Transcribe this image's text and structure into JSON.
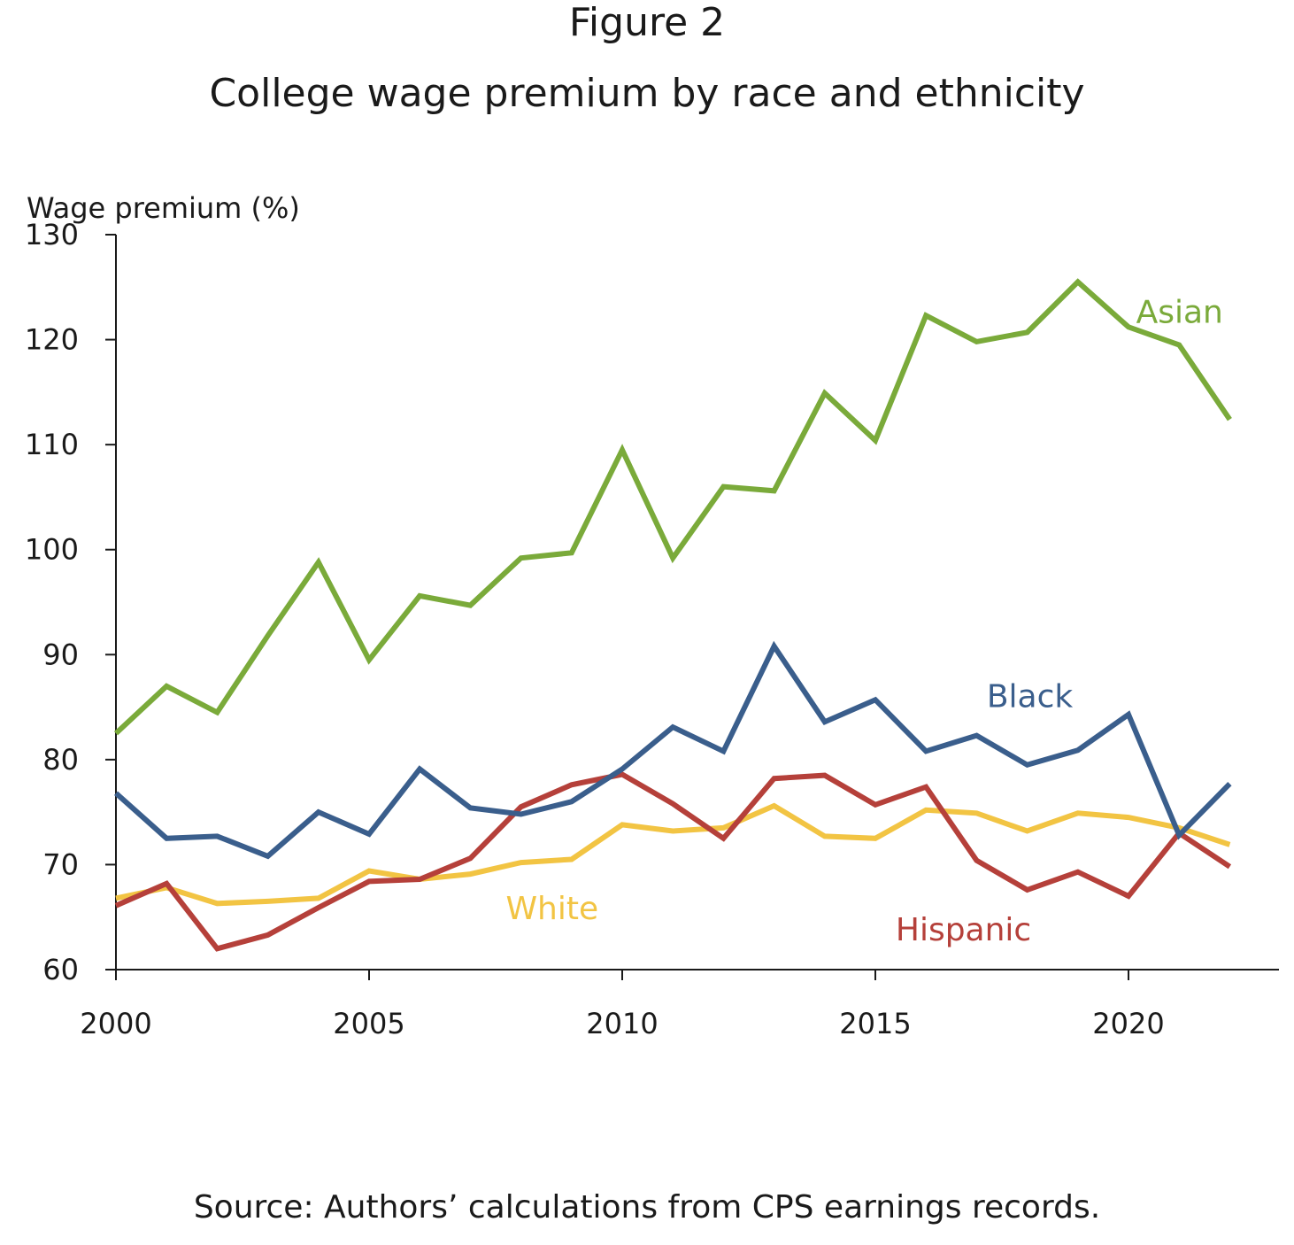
{
  "figure": {
    "label": "Figure 2",
    "title": "College wage premium by race and ethnicity",
    "source": "Source: Authors’ calculations from CPS earnings records."
  },
  "chart_data": {
    "type": "line",
    "title": "College wage premium by race and ethnicity",
    "xlabel": "",
    "ylabel": "Wage premium (%)",
    "xlim": [
      2000,
      2023
    ],
    "ylim": [
      60,
      130
    ],
    "xticks": [
      2000,
      2005,
      2010,
      2015,
      2020
    ],
    "yticks": [
      60,
      70,
      80,
      90,
      100,
      110,
      120,
      130
    ],
    "grid": false,
    "x": [
      2000,
      2001,
      2002,
      2003,
      2004,
      2005,
      2006,
      2007,
      2008,
      2009,
      2010,
      2011,
      2012,
      2013,
      2014,
      2015,
      2016,
      2017,
      2018,
      2019,
      2020,
      2021,
      2022
    ],
    "series": [
      {
        "name": "Asian",
        "color": "#7aaa3a",
        "values": [
          82.5,
          87,
          84.5,
          91.8,
          98.8,
          89.5,
          95.6,
          94.7,
          99.2,
          99.7,
          109.5,
          99.2,
          106,
          105.6,
          114.9,
          110.4,
          122.3,
          119.8,
          120.7,
          125.5,
          121.2,
          119.5,
          112.4
        ]
      },
      {
        "name": "Black",
        "color": "#3a5e8c",
        "values": [
          76.8,
          72.5,
          72.7,
          70.8,
          75,
          72.9,
          79.1,
          75.4,
          74.8,
          76,
          79.1,
          83.1,
          80.8,
          90.8,
          83.6,
          85.7,
          80.8,
          82.3,
          79.5,
          80.9,
          84.3,
          72.8,
          77.7
        ]
      },
      {
        "name": "White",
        "color": "#f2c443",
        "values": [
          66.8,
          67.8,
          66.3,
          66.5,
          66.8,
          69.4,
          68.6,
          69.1,
          70.2,
          70.5,
          73.8,
          73.2,
          73.5,
          75.6,
          72.7,
          72.5,
          75.2,
          74.9,
          73.2,
          74.9,
          74.5,
          73.5,
          71.9
        ]
      },
      {
        "name": "Hispanic",
        "color": "#b5403a",
        "values": [
          66.1,
          68.2,
          62,
          63.3,
          65.9,
          68.4,
          68.6,
          70.6,
          75.5,
          77.6,
          78.6,
          75.8,
          72.5,
          78.2,
          78.5,
          75.7,
          77.4,
          70.4,
          67.6,
          69.3,
          67,
          73,
          69.8
        ]
      }
    ]
  }
}
